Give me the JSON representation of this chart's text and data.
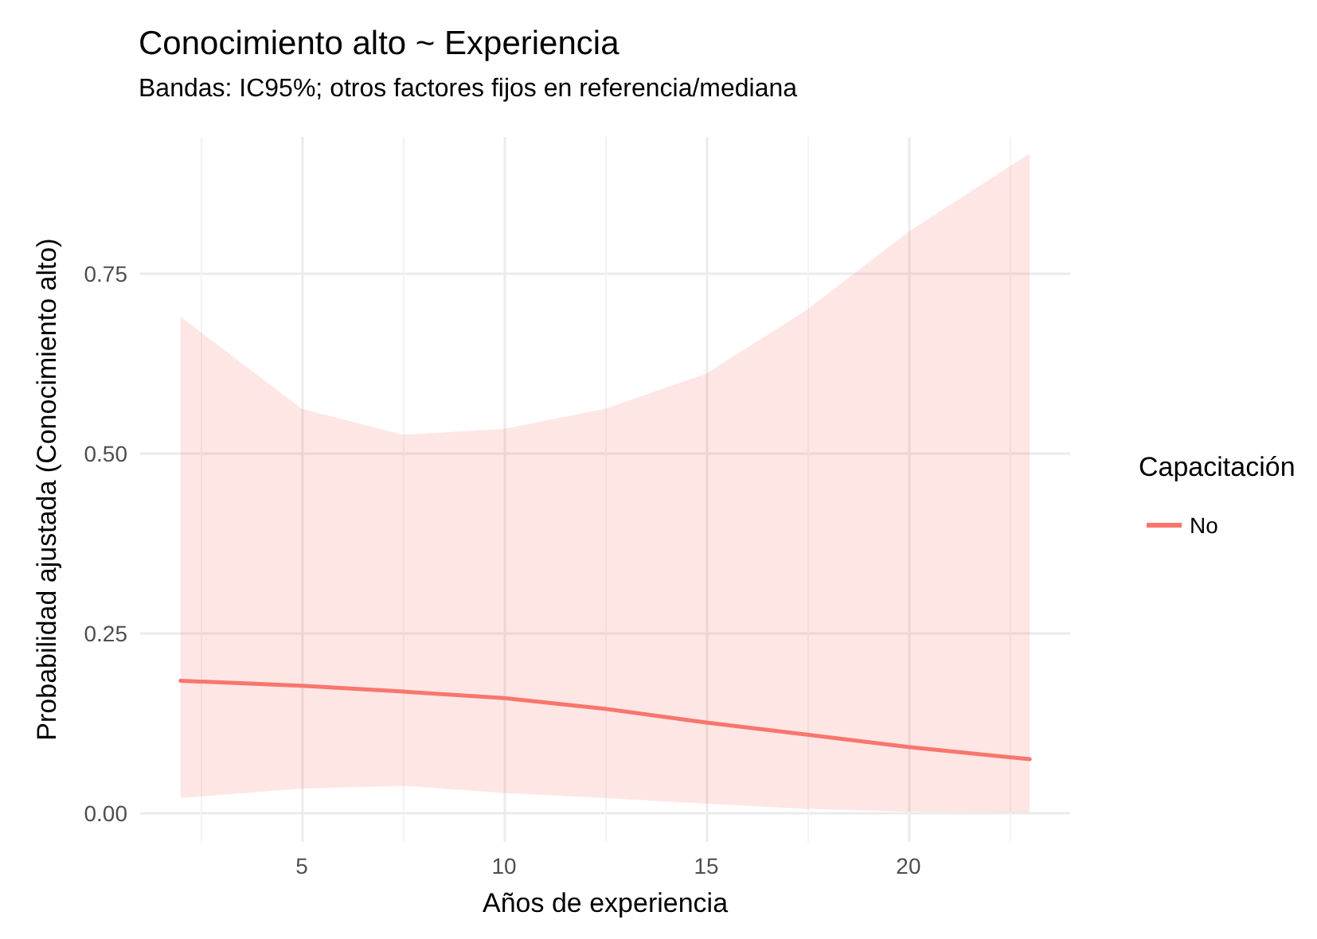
{
  "chart_data": {
    "type": "line",
    "title": "Conocimiento alto ~ Experiencia",
    "subtitle": "Bandas: IC95%; otros factores fijos en referencia/mediana",
    "xlabel": "Años de experiencia",
    "ylabel": "Probabilidad ajustada (Conocimiento alto)",
    "legend_title": "Capacitación",
    "x": [
      2,
      5,
      7.5,
      10,
      12.5,
      15,
      17.5,
      20,
      23
    ],
    "series": [
      {
        "name": "No",
        "color": "#f8766d",
        "values": [
          0.184,
          0.177,
          0.169,
          0.16,
          0.145,
          0.126,
          0.109,
          0.092,
          0.075
        ],
        "lower": [
          0.021,
          0.034,
          0.038,
          0.028,
          0.021,
          0.013,
          0.006,
          0.002,
          0.001
        ],
        "upper": [
          0.69,
          0.562,
          0.526,
          0.534,
          0.562,
          0.611,
          0.7,
          0.808,
          0.917
        ]
      }
    ],
    "xlim": [
      1,
      24
    ],
    "xticks": [
      5,
      10,
      15,
      20
    ],
    "ylim": [
      -0.04,
      0.94
    ],
    "yticks": [
      {
        "value": 0,
        "label": "0.00"
      },
      {
        "value": 0.25,
        "label": "0.25"
      },
      {
        "value": 0.5,
        "label": "0.50"
      },
      {
        "value": 0.75,
        "label": "0.75"
      }
    ],
    "grid": true,
    "legend": "right",
    "marker": "none",
    "line_style": "solid"
  }
}
